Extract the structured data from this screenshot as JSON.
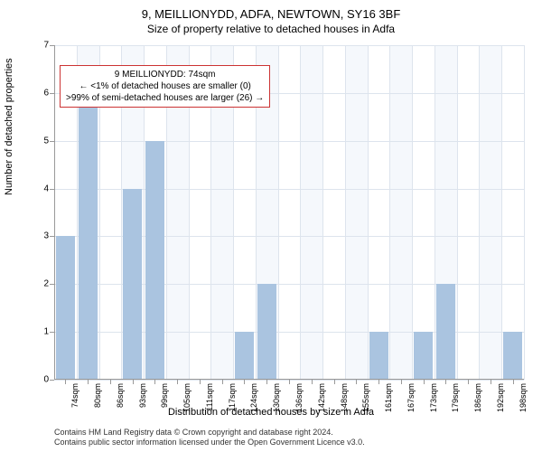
{
  "chart": {
    "type": "bar",
    "title_main": "9, MEILLIONYDD, ADFA, NEWTOWN, SY16 3BF",
    "title_sub": "Size of property relative to detached houses in Adfa",
    "title_fontsize": 13,
    "subtitle_fontsize": 12,
    "y_axis_label": "Number of detached properties",
    "x_axis_label": "Distribution of detached houses by size in Adfa",
    "axis_label_fontsize": 11,
    "categories": [
      "74sqm",
      "80sqm",
      "86sqm",
      "93sqm",
      "99sqm",
      "105sqm",
      "111sqm",
      "117sqm",
      "124sqm",
      "130sqm",
      "136sqm",
      "142sqm",
      "148sqm",
      "155sqm",
      "161sqm",
      "167sqm",
      "173sqm",
      "179sqm",
      "186sqm",
      "192sqm",
      "198sqm"
    ],
    "values": [
      3,
      6,
      0,
      4,
      5,
      0,
      0,
      0,
      1,
      2,
      0,
      0,
      0,
      0,
      1,
      0,
      1,
      2,
      0,
      0,
      1
    ],
    "ylim": [
      0,
      7
    ],
    "ytick_step": 1,
    "bar_color": "#aac4e0",
    "grid_color": "#dde4ed",
    "band_color": "#f5f8fc",
    "axis_color": "#999999",
    "background_color": "#ffffff",
    "bar_width_ratio": 0.85,
    "tick_fontsize": 10,
    "annotation": {
      "line1": "9 MEILLIONYDD: 74sqm",
      "line2": "← <1% of detached houses are smaller (0)",
      "line3": ">99% of semi-detached houses are larger (26) →",
      "border_color": "#cc3333",
      "fontsize": 10
    },
    "footer_line1": "Contains HM Land Registry data © Crown copyright and database right 2024.",
    "footer_line2": "Contains public sector information licensed under the Open Government Licence v3.0.",
    "footer_fontsize": 9
  }
}
